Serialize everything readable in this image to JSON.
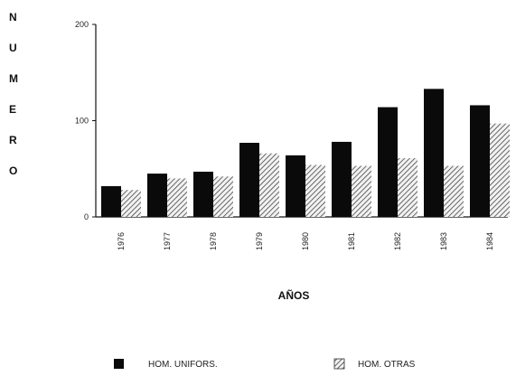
{
  "chart_data": {
    "type": "bar",
    "categories": [
      "1976",
      "1977",
      "1978",
      "1979",
      "1980",
      "1981",
      "1982",
      "1983",
      "1984"
    ],
    "series": [
      {
        "name": "HOM. UNIFORS.",
        "values": [
          32,
          45,
          47,
          77,
          64,
          78,
          114,
          133,
          116
        ],
        "color": "#0a0a0a",
        "pattern": "solid"
      },
      {
        "name": "HOM. OTRAS",
        "values": [
          28,
          40,
          42,
          66,
          54,
          53,
          61,
          53,
          97
        ],
        "color": "#555555",
        "pattern": "diagonal-hatch"
      }
    ],
    "title": "",
    "xlabel": "AÑOS",
    "ylabel": "NUMERO",
    "ylim": [
      0,
      200
    ],
    "yticks": [
      "0",
      "100",
      "200"
    ],
    "grid": false,
    "legend": "bottom"
  }
}
